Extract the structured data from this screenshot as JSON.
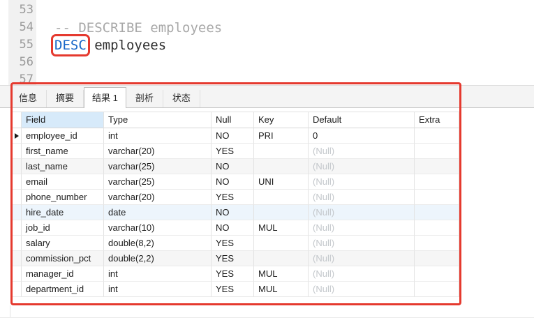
{
  "colors": {
    "annotation": "#e5392e",
    "keyword": "#1766c8",
    "comment": "#a8a8a8",
    "field_header_bg": "#d7eafa",
    "row_highlight_blue": "#edf5fc",
    "row_highlight_gray": "#f6f6f6"
  },
  "editor": {
    "lines": [
      {
        "num": "53",
        "segments": []
      },
      {
        "num": "54",
        "segments": [
          {
            "style": "comment",
            "text": "-- DESCRIBE employees"
          }
        ]
      },
      {
        "num": "55",
        "segments": [
          {
            "style": "keyword",
            "text": "DESC",
            "boxed": true
          },
          {
            "style": "plain",
            "text": " employees"
          }
        ]
      },
      {
        "num": "56",
        "segments": []
      },
      {
        "num": "57",
        "segments": []
      }
    ]
  },
  "tabs": {
    "items": [
      {
        "label": "信息",
        "active": false
      },
      {
        "label": "摘要",
        "active": false
      },
      {
        "label": "结果 1",
        "active": true
      },
      {
        "label": "剖析",
        "active": false
      },
      {
        "label": "状态",
        "active": false
      }
    ]
  },
  "result_grid": {
    "columns": [
      "Field",
      "Type",
      "Null",
      "Key",
      "Default",
      "Extra"
    ],
    "null_placeholder": "(Null)",
    "rows": [
      {
        "cells": [
          "employee_id",
          "int",
          "NO",
          "PRI",
          "0",
          ""
        ],
        "marker": true,
        "highlight": "none"
      },
      {
        "cells": [
          "first_name",
          "varchar(20)",
          "YES",
          "",
          "(Null)",
          ""
        ],
        "marker": false,
        "highlight": "none"
      },
      {
        "cells": [
          "last_name",
          "varchar(25)",
          "NO",
          "",
          "(Null)",
          ""
        ],
        "marker": false,
        "highlight": "gray"
      },
      {
        "cells": [
          "email",
          "varchar(25)",
          "NO",
          "UNI",
          "(Null)",
          ""
        ],
        "marker": false,
        "highlight": "none"
      },
      {
        "cells": [
          "phone_number",
          "varchar(20)",
          "YES",
          "",
          "(Null)",
          ""
        ],
        "marker": false,
        "highlight": "none"
      },
      {
        "cells": [
          "hire_date",
          "date",
          "NO",
          "",
          "(Null)",
          ""
        ],
        "marker": false,
        "highlight": "blue"
      },
      {
        "cells": [
          "job_id",
          "varchar(10)",
          "NO",
          "MUL",
          "(Null)",
          ""
        ],
        "marker": false,
        "highlight": "none"
      },
      {
        "cells": [
          "salary",
          "double(8,2)",
          "YES",
          "",
          "(Null)",
          ""
        ],
        "marker": false,
        "highlight": "none"
      },
      {
        "cells": [
          "commission_pct",
          "double(2,2)",
          "YES",
          "",
          "(Null)",
          ""
        ],
        "marker": false,
        "highlight": "gray"
      },
      {
        "cells": [
          "manager_id",
          "int",
          "YES",
          "MUL",
          "(Null)",
          ""
        ],
        "marker": false,
        "highlight": "none"
      },
      {
        "cells": [
          "department_id",
          "int",
          "YES",
          "MUL",
          "(Null)",
          ""
        ],
        "marker": false,
        "highlight": "none"
      }
    ]
  }
}
